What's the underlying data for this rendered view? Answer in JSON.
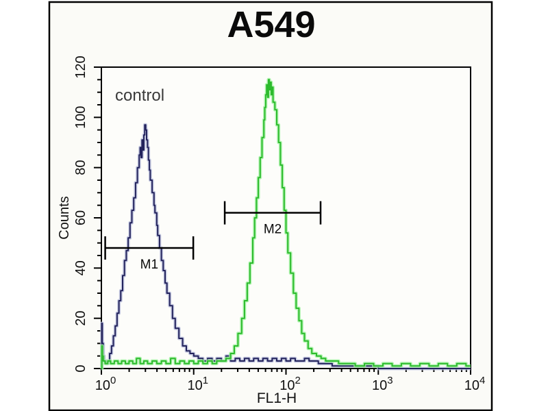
{
  "figure": {
    "title": "A549",
    "frame_color": "#000000",
    "background_color": "#fbfbf7"
  },
  "chart_data": {
    "type": "line",
    "subtype": "flow-cytometry-histogram-overlay",
    "title": "A549",
    "xlabel": "FL1-H",
    "ylabel": "Counts",
    "x_scale": "log",
    "x_range": [
      1,
      10000
    ],
    "x_tick_labels": [
      "10^0",
      "10^1",
      "10^2",
      "10^3",
      "10^4"
    ],
    "y_range": [
      0,
      120
    ],
    "y_major_ticks": [
      0,
      20,
      40,
      60,
      80,
      100,
      120
    ],
    "y_minor_step": 5,
    "grid": false,
    "legend": "none",
    "annotations": [
      {
        "text": "control",
        "x": 1.4,
        "y": 110,
        "color": "#3a3a3a"
      }
    ],
    "markers": [
      {
        "label": "M1",
        "y": 48,
        "x_from": 1.1,
        "x_to": 9.9
      },
      {
        "label": "M2",
        "y": 62,
        "x_from": 21.7,
        "x_to": 237
      }
    ],
    "series": [
      {
        "id": "control-navy",
        "label": "control",
        "color": "#23235c",
        "glow": "#b9bedc",
        "peak": {
          "x": 3.0,
          "count": 97
        },
        "points_log_x_count": [
          [
            0.0,
            0
          ],
          [
            0.005,
            18
          ],
          [
            0.01,
            10
          ],
          [
            0.02,
            5
          ],
          [
            0.03,
            3
          ],
          [
            0.05,
            2
          ],
          [
            0.07,
            3
          ],
          [
            0.09,
            6
          ],
          [
            0.11,
            9
          ],
          [
            0.13,
            13
          ],
          [
            0.15,
            17
          ],
          [
            0.17,
            22
          ],
          [
            0.19,
            27
          ],
          [
            0.21,
            31
          ],
          [
            0.23,
            37
          ],
          [
            0.25,
            43
          ],
          [
            0.27,
            47
          ],
          [
            0.29,
            52
          ],
          [
            0.31,
            58
          ],
          [
            0.33,
            63
          ],
          [
            0.35,
            68
          ],
          [
            0.37,
            74
          ],
          [
            0.39,
            80
          ],
          [
            0.41,
            85
          ],
          [
            0.42,
            88
          ],
          [
            0.43,
            84
          ],
          [
            0.44,
            91
          ],
          [
            0.45,
            87
          ],
          [
            0.46,
            93
          ],
          [
            0.47,
            97
          ],
          [
            0.48,
            95
          ],
          [
            0.49,
            91
          ],
          [
            0.5,
            88
          ],
          [
            0.51,
            83
          ],
          [
            0.52,
            79
          ],
          [
            0.53,
            75
          ],
          [
            0.55,
            70
          ],
          [
            0.57,
            65
          ],
          [
            0.58,
            62
          ],
          [
            0.6,
            57
          ],
          [
            0.61,
            53
          ],
          [
            0.63,
            48
          ],
          [
            0.65,
            43
          ],
          [
            0.67,
            39
          ],
          [
            0.69,
            34
          ],
          [
            0.71,
            30
          ],
          [
            0.74,
            25
          ],
          [
            0.77,
            20
          ],
          [
            0.8,
            16
          ],
          [
            0.84,
            12
          ],
          [
            0.88,
            9
          ],
          [
            0.92,
            7
          ],
          [
            0.96,
            6
          ],
          [
            1.0,
            5
          ],
          [
            1.05,
            4
          ],
          [
            1.1,
            3
          ],
          [
            1.15,
            4
          ],
          [
            1.2,
            3
          ],
          [
            1.25,
            4
          ],
          [
            1.3,
            3
          ],
          [
            1.35,
            5
          ],
          [
            1.4,
            3
          ],
          [
            1.45,
            4
          ],
          [
            1.5,
            3
          ],
          [
            1.55,
            4
          ],
          [
            1.6,
            3
          ],
          [
            1.65,
            4
          ],
          [
            1.7,
            3
          ],
          [
            1.75,
            4
          ],
          [
            1.8,
            3
          ],
          [
            1.85,
            4
          ],
          [
            1.9,
            3
          ],
          [
            1.95,
            4
          ],
          [
            2.0,
            3
          ],
          [
            2.05,
            4
          ],
          [
            2.1,
            3
          ],
          [
            2.15,
            3
          ],
          [
            2.2,
            4
          ],
          [
            2.25,
            3
          ],
          [
            2.3,
            3
          ],
          [
            2.35,
            2
          ],
          [
            2.4,
            2
          ],
          [
            2.45,
            2
          ],
          [
            2.5,
            1
          ],
          [
            2.6,
            1
          ],
          [
            2.7,
            1
          ],
          [
            2.8,
            1
          ],
          [
            3.0,
            0
          ],
          [
            3.2,
            0
          ],
          [
            3.5,
            0
          ],
          [
            3.8,
            0
          ],
          [
            4.0,
            0
          ]
        ]
      },
      {
        "id": "stained-green",
        "label": "",
        "color": "#2dbb2d",
        "glow": "#a2f2a2",
        "peak": {
          "x": 65,
          "count": 115
        },
        "points_log_x_count": [
          [
            0.0,
            0
          ],
          [
            0.005,
            9
          ],
          [
            0.01,
            5
          ],
          [
            0.02,
            3
          ],
          [
            0.04,
            2
          ],
          [
            0.07,
            3
          ],
          [
            0.1,
            2
          ],
          [
            0.14,
            3
          ],
          [
            0.18,
            2
          ],
          [
            0.22,
            3
          ],
          [
            0.26,
            2
          ],
          [
            0.3,
            3
          ],
          [
            0.34,
            2
          ],
          [
            0.38,
            4
          ],
          [
            0.42,
            2
          ],
          [
            0.46,
            3
          ],
          [
            0.5,
            2
          ],
          [
            0.55,
            3
          ],
          [
            0.6,
            2
          ],
          [
            0.65,
            3
          ],
          [
            0.7,
            2
          ],
          [
            0.75,
            4
          ],
          [
            0.8,
            2
          ],
          [
            0.85,
            3
          ],
          [
            0.9,
            2
          ],
          [
            0.95,
            3
          ],
          [
            1.0,
            2
          ],
          [
            1.05,
            3
          ],
          [
            1.1,
            2
          ],
          [
            1.15,
            3
          ],
          [
            1.2,
            2
          ],
          [
            1.25,
            3
          ],
          [
            1.3,
            3
          ],
          [
            1.35,
            4
          ],
          [
            1.4,
            6
          ],
          [
            1.44,
            9
          ],
          [
            1.48,
            14
          ],
          [
            1.52,
            20
          ],
          [
            1.55,
            27
          ],
          [
            1.58,
            34
          ],
          [
            1.61,
            42
          ],
          [
            1.64,
            52
          ],
          [
            1.66,
            60
          ],
          [
            1.68,
            68
          ],
          [
            1.7,
            76
          ],
          [
            1.72,
            84
          ],
          [
            1.74,
            92
          ],
          [
            1.76,
            99
          ],
          [
            1.77,
            104
          ],
          [
            1.78,
            109
          ],
          [
            1.79,
            113
          ],
          [
            1.8,
            108
          ],
          [
            1.81,
            115
          ],
          [
            1.82,
            111
          ],
          [
            1.83,
            114
          ],
          [
            1.84,
            109
          ],
          [
            1.85,
            112
          ],
          [
            1.86,
            106
          ],
          [
            1.88,
            103
          ],
          [
            1.9,
            97
          ],
          [
            1.92,
            90
          ],
          [
            1.94,
            81
          ],
          [
            1.96,
            72
          ],
          [
            1.98,
            63
          ],
          [
            2.0,
            54
          ],
          [
            2.02,
            46
          ],
          [
            2.05,
            38
          ],
          [
            2.08,
            30
          ],
          [
            2.11,
            24
          ],
          [
            2.14,
            19
          ],
          [
            2.17,
            14
          ],
          [
            2.2,
            11
          ],
          [
            2.24,
            8
          ],
          [
            2.28,
            6
          ],
          [
            2.33,
            5
          ],
          [
            2.38,
            4
          ],
          [
            2.43,
            3
          ],
          [
            2.5,
            3
          ],
          [
            2.57,
            2
          ],
          [
            2.65,
            2
          ],
          [
            2.75,
            1
          ],
          [
            2.85,
            2
          ],
          [
            2.95,
            1
          ],
          [
            3.05,
            2
          ],
          [
            3.15,
            1
          ],
          [
            3.25,
            2
          ],
          [
            3.35,
            1
          ],
          [
            3.45,
            2
          ],
          [
            3.55,
            1
          ],
          [
            3.65,
            2
          ],
          [
            3.75,
            1
          ],
          [
            3.85,
            2
          ],
          [
            3.95,
            1
          ],
          [
            4.0,
            1
          ]
        ]
      }
    ]
  }
}
